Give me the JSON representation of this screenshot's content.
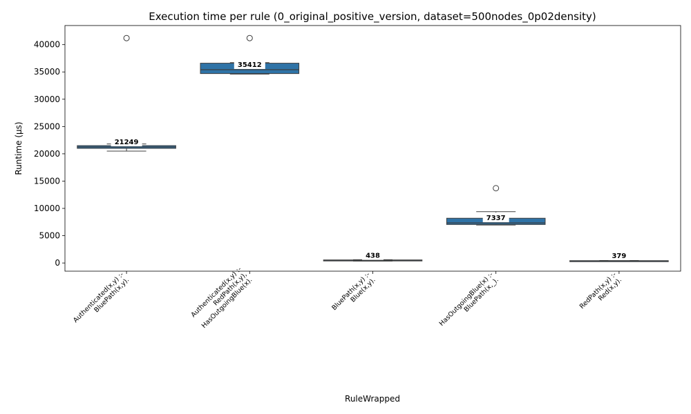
{
  "chart_data": {
    "type": "box",
    "title": "Execution time per rule (0_original_positive_version, dataset=500nodes_0p02density)",
    "xlabel": "RuleWrapped",
    "ylabel": "Runtime (µs)",
    "ylim": [
      -1500,
      43500
    ],
    "yticks": [
      0,
      5000,
      10000,
      15000,
      20000,
      25000,
      30000,
      35000,
      40000
    ],
    "grid": false,
    "box_color": "#2f73a7",
    "categories": [
      [
        "Authenticated(x,y) :-",
        "BluePath(x,y)."
      ],
      [
        "Authenticated(x,y) :-",
        "RedPath(x,y),",
        "HasOutgoingBlue(x)."
      ],
      [
        "BluePath(x,y) :-",
        "Blue(x,y)."
      ],
      [
        "HasOutgoingBlue(x) :-",
        "BluePath(x,_)."
      ],
      [
        "RedPath(x,y) :-",
        "Red(x,y)."
      ]
    ],
    "boxes": [
      {
        "whisker_low": 20500,
        "q1": 21000,
        "median": 21249,
        "q3": 21500,
        "whisker_high": 21800,
        "outliers": [
          41200
        ],
        "median_label": "21249"
      },
      {
        "whisker_low": 34600,
        "q1": 34700,
        "median": 35412,
        "q3": 36600,
        "whisker_high": 36700,
        "outliers": [
          41200
        ],
        "median_label": "35412"
      },
      {
        "whisker_low": 350,
        "q1": 370,
        "median": 438,
        "q3": 560,
        "whisker_high": 600,
        "outliers": [],
        "median_label": "438"
      },
      {
        "whisker_low": 6950,
        "q1": 7050,
        "median": 7337,
        "q3": 8200,
        "whisker_high": 9400,
        "outliers": [
          13700
        ],
        "median_label": "7337"
      },
      {
        "whisker_low": 330,
        "q1": 340,
        "median": 379,
        "q3": 430,
        "whisker_high": 460,
        "outliers": [],
        "median_label": "379"
      }
    ]
  }
}
